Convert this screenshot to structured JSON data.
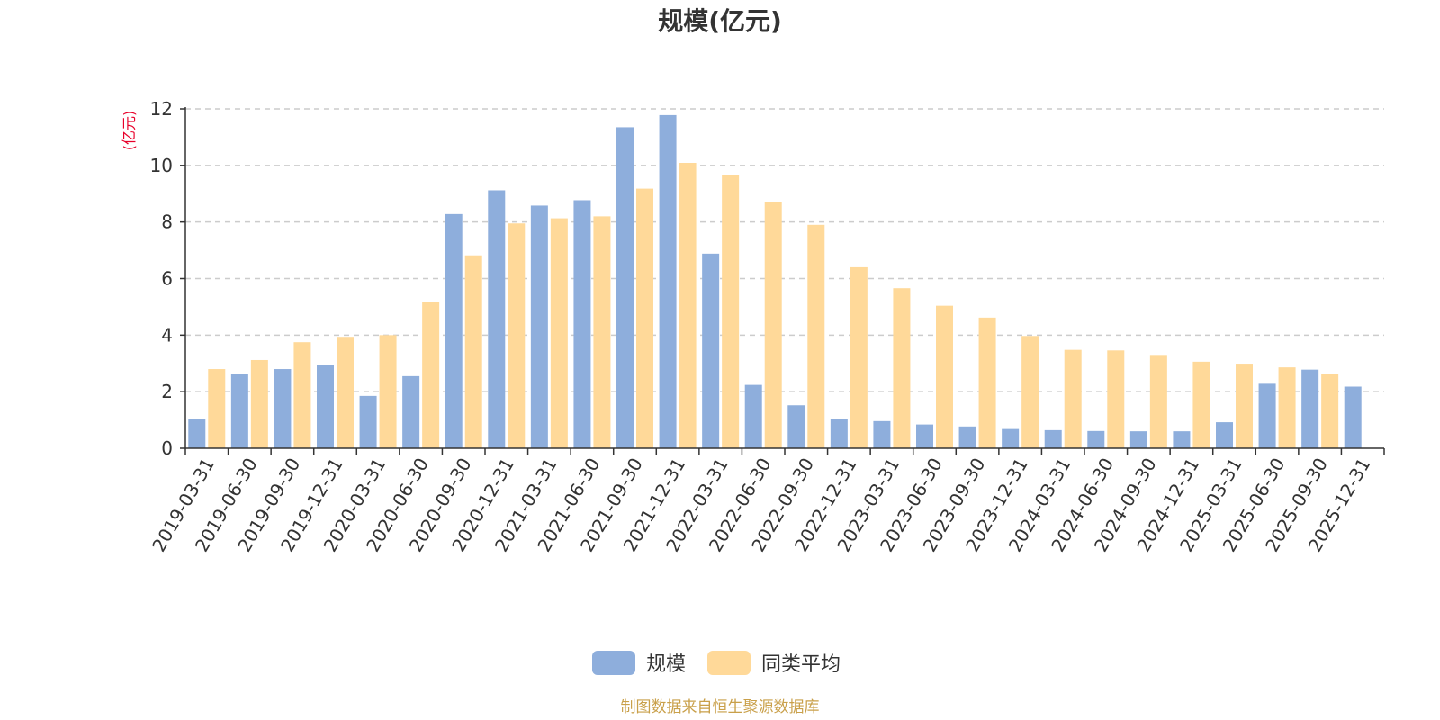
{
  "chart_data": {
    "type": "bar",
    "title": "规模(亿元)",
    "ylabel": "(亿元)",
    "ylim": [
      0,
      12
    ],
    "yticks": [
      0,
      2,
      4,
      6,
      8,
      10,
      12
    ],
    "grid": true,
    "legend_position": "bottom-center",
    "categories": [
      "2019-03-31",
      "2019-06-30",
      "2019-09-30",
      "2019-12-31",
      "2020-03-31",
      "2020-06-30",
      "2020-09-30",
      "2020-12-31",
      "2021-03-31",
      "2021-06-30",
      "2021-09-30",
      "2021-12-31",
      "2022-03-31",
      "2022-06-30",
      "2022-09-30",
      "2022-12-31",
      "2023-03-31",
      "2023-06-30",
      "2023-09-30",
      "2023-12-31",
      "2024-03-31",
      "2024-06-30",
      "2024-09-30",
      "2024-12-31",
      "2025-03-31",
      "2025-06-30",
      "2025-09-30",
      "2025-12-31"
    ],
    "series": [
      {
        "name": "规模",
        "color": "#8EAEDC",
        "values": [
          1.05,
          2.62,
          2.8,
          2.96,
          1.85,
          2.55,
          8.28,
          9.12,
          8.58,
          8.77,
          11.35,
          11.78,
          6.88,
          2.24,
          1.52,
          1.02,
          0.96,
          0.84,
          0.77,
          0.68,
          0.64,
          0.61,
          0.6,
          0.6,
          0.92,
          2.28,
          2.78,
          2.18
        ]
      },
      {
        "name": "同类平均",
        "color": "#FFD999",
        "values": [
          2.8,
          3.12,
          3.75,
          3.94,
          4.0,
          5.18,
          6.82,
          7.95,
          8.13,
          8.2,
          9.18,
          10.09,
          9.67,
          8.71,
          7.9,
          6.4,
          5.66,
          5.04,
          4.62,
          3.97,
          3.48,
          3.46,
          3.3,
          3.06,
          2.99,
          2.86,
          2.62,
          null
        ]
      }
    ]
  },
  "source_note": "制图数据来自恒生聚源数据库",
  "colors": {
    "ylabel": "#E8002A",
    "source": "#C9A04A",
    "axis": "#333333",
    "grid": "#CCCCCC"
  }
}
